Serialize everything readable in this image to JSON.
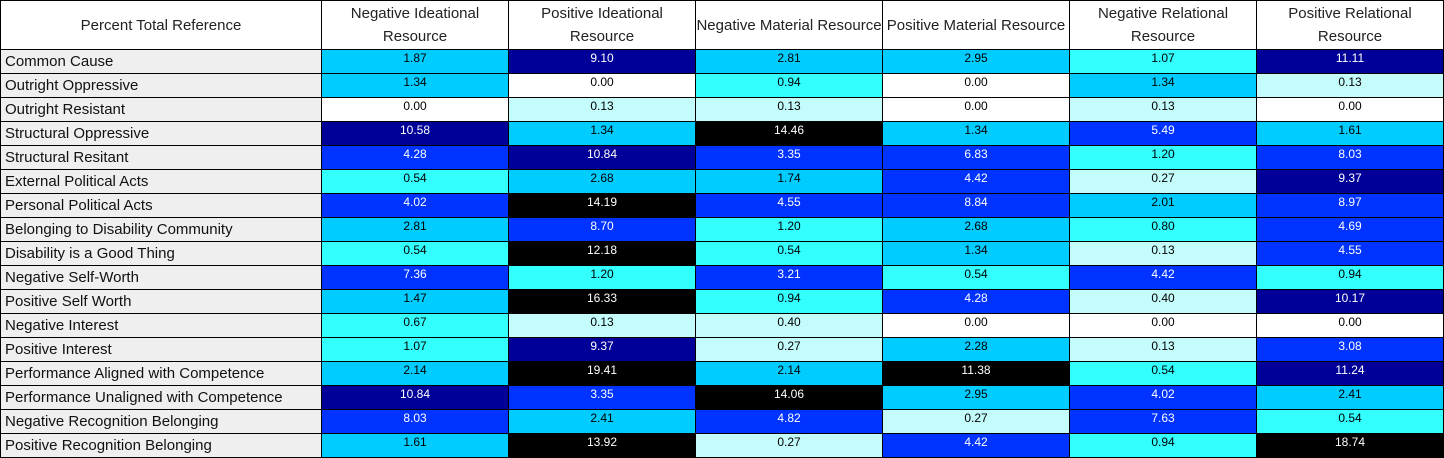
{
  "chart_data": {
    "type": "heatmap",
    "corner_label": "Percent Total Reference",
    "columns": [
      "Negative Ideational Resource",
      "Positive Ideational Resource",
      "Negative Material Resource",
      "Positive Material Resource",
      "Negative Relational Resource",
      "Positive Relational Resource"
    ],
    "rows": [
      {
        "label": "Common Cause",
        "values": [
          "1.87",
          "9.10",
          "2.81",
          "2.95",
          "1.07",
          "11.11"
        ]
      },
      {
        "label": "Outright Oppressive",
        "values": [
          "1.34",
          "0.00",
          "0.94",
          "0.00",
          "1.34",
          "0.13"
        ]
      },
      {
        "label": "Outright Resistant",
        "values": [
          "0.00",
          "0.13",
          "0.13",
          "0.00",
          "0.13",
          "0.00"
        ]
      },
      {
        "label": "Structural Oppressive",
        "values": [
          "10.58",
          "1.34",
          "14.46",
          "1.34",
          "5.49",
          "1.61"
        ]
      },
      {
        "label": "Structural Resitant",
        "values": [
          "4.28",
          "10.84",
          "3.35",
          "6.83",
          "1.20",
          "8.03"
        ]
      },
      {
        "label": "External Political Acts",
        "values": [
          "0.54",
          "2.68",
          "1.74",
          "4.42",
          "0.27",
          "9.37"
        ]
      },
      {
        "label": "Personal Political Acts",
        "values": [
          "4.02",
          "14.19",
          "4.55",
          "8.84",
          "2.01",
          "8.97"
        ]
      },
      {
        "label": "Belonging to Disability Community",
        "values": [
          "2.81",
          "8.70",
          "1.20",
          "2.68",
          "0.80",
          "4.69"
        ]
      },
      {
        "label": "Disability is a Good Thing",
        "values": [
          "0.54",
          "12.18",
          "0.54",
          "1.34",
          "0.13",
          "4.55"
        ]
      },
      {
        "label": "Negative Self-Worth",
        "values": [
          "7.36",
          "1.20",
          "3.21",
          "0.54",
          "4.42",
          "0.94"
        ]
      },
      {
        "label": "Positive Self Worth",
        "values": [
          "1.47",
          "16.33",
          "0.94",
          "4.28",
          "0.40",
          "10.17"
        ]
      },
      {
        "label": "Negative Interest",
        "values": [
          "0.67",
          "0.13",
          "0.40",
          "0.00",
          "0.00",
          "0.00"
        ]
      },
      {
        "label": "Positive Interest",
        "values": [
          "1.07",
          "9.37",
          "0.27",
          "2.28",
          "0.13",
          "3.08"
        ]
      },
      {
        "label": "Performance Aligned with Competence",
        "values": [
          "2.14",
          "19.41",
          "2.14",
          "11.38",
          "0.54",
          "11.24"
        ]
      },
      {
        "label": "Performance Unaligned with Competence",
        "values": [
          "10.84",
          "3.35",
          "14.06",
          "2.95",
          "4.02",
          "2.41"
        ]
      },
      {
        "label": "Negative Recognition Belonging",
        "values": [
          "8.03",
          "2.41",
          "4.82",
          "0.27",
          "7.63",
          "0.54"
        ]
      },
      {
        "label": "Positive Recognition Belonging",
        "values": [
          "1.61",
          "13.92",
          "0.27",
          "4.42",
          "0.94",
          "18.74"
        ]
      }
    ],
    "color_scale": {
      "white": "#ffffff",
      "pale_cyan": "#c4fbfb",
      "cyan": "#33ffff",
      "sky_blue": "#00ccff",
      "blue": "#0033ff",
      "navy": "#000099",
      "black": "#000000"
    }
  }
}
